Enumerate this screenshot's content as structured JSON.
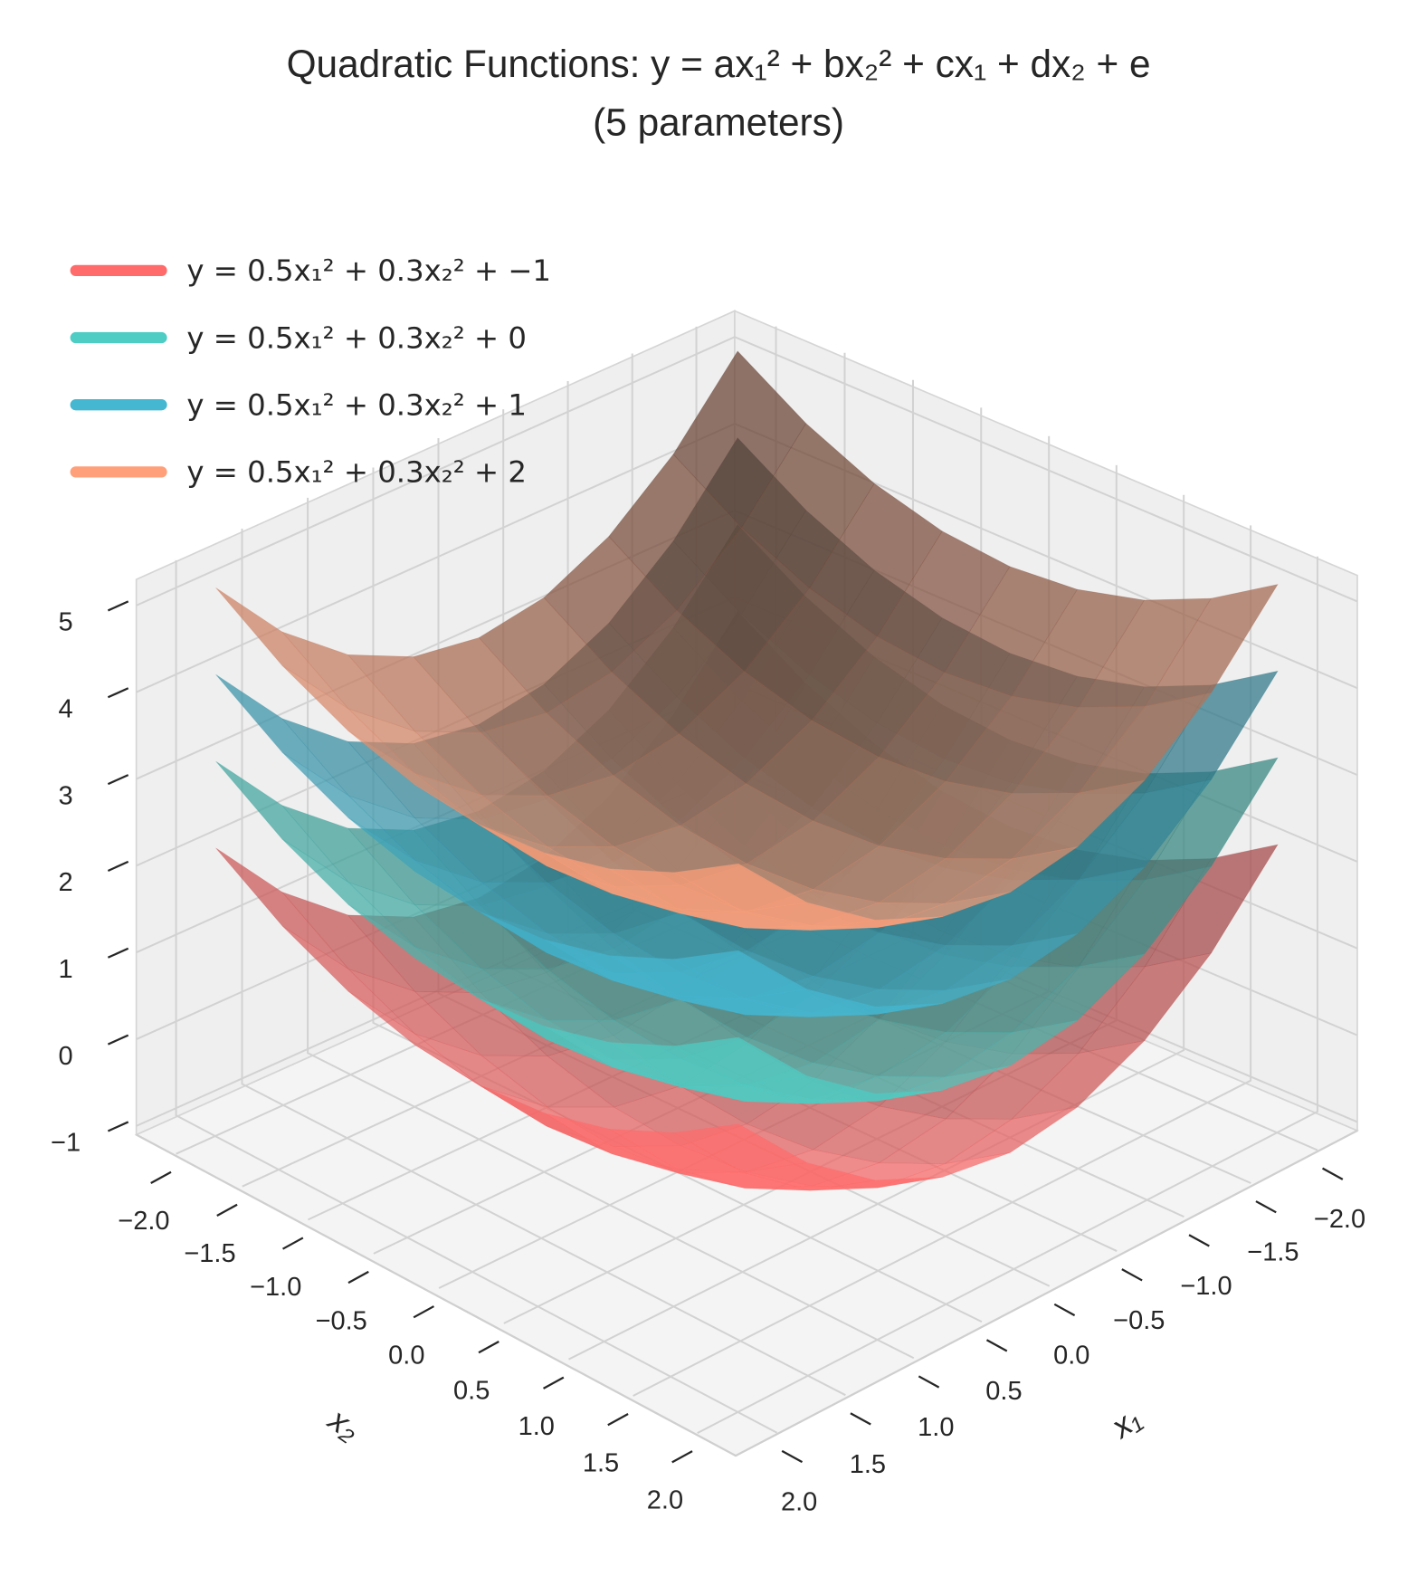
{
  "chart_data": {
    "type": "surface3d",
    "title": [
      "Quadratic Functions: y = ax₁² + bx₂² + cx₁ + dx₂ + e",
      "(5 parameters)"
    ],
    "x1_label": "x₁",
    "x2_label": "x₂",
    "x1": [
      -2,
      -1.5,
      -1,
      -0.5,
      0,
      0.5,
      1,
      1.5,
      2
    ],
    "x2": [
      -2,
      -1.5,
      -1,
      -0.5,
      0,
      0.5,
      1,
      1.5,
      2
    ],
    "x1lim": [
      -2.3,
      2.3
    ],
    "x2lim": [
      -2.3,
      2.3
    ],
    "zlim": [
      -1.1,
      5.3
    ],
    "x1ticks": [
      {
        "value": -2,
        "label": "−2.0"
      },
      {
        "value": -1.5,
        "label": "−1.5"
      },
      {
        "value": -1,
        "label": "−1.0"
      },
      {
        "value": -0.5,
        "label": "−0.5"
      },
      {
        "value": 0,
        "label": "0.0"
      },
      0.5,
      {
        "value": 1,
        "label": "1.0"
      },
      1.5,
      {
        "value": 2,
        "label": "2.0"
      }
    ],
    "x2ticks": [
      {
        "value": -2,
        "label": "−2.0"
      },
      {
        "value": -1.5,
        "label": "−1.5"
      },
      {
        "value": -1,
        "label": "−1.0"
      },
      {
        "value": -0.5,
        "label": "−0.5"
      },
      {
        "value": 0,
        "label": "0.0"
      },
      0.5,
      {
        "value": 1,
        "label": "1.0"
      },
      1.5,
      {
        "value": 2,
        "label": "2.0"
      }
    ],
    "zticks": [
      {
        "value": -1,
        "label": "−1"
      },
      0,
      1,
      2,
      3,
      4,
      5
    ],
    "grid": true,
    "legend": "upper left",
    "series": [
      {
        "name": "y = 0.5x₁² + 0.3x₂² + −1",
        "color": "#ff6b6b",
        "z": [
          [
            2.2,
            1.675,
            1.3,
            1.075,
            1,
            1.075,
            1.3,
            1.675,
            2.2
          ],
          [
            1.325,
            0.8,
            0.425,
            0.2,
            0.125,
            0.2,
            0.425,
            0.8,
            1.325
          ],
          [
            0.7,
            0.175,
            -0.2,
            -0.425,
            -0.5,
            -0.425,
            -0.2,
            0.175,
            0.7
          ],
          [
            0.325,
            -0.2,
            -0.575,
            -0.8,
            -0.875,
            -0.8,
            -0.575,
            -0.2,
            0.325
          ],
          [
            0.2,
            -0.325,
            -0.7,
            -0.925,
            -1,
            -0.925,
            -0.7,
            -0.325,
            0.2
          ],
          [
            0.325,
            -0.2,
            -0.575,
            -0.8,
            -0.875,
            -0.8,
            -0.575,
            -0.2,
            0.325
          ],
          [
            0.7,
            0.175,
            -0.2,
            -0.425,
            -0.5,
            -0.425,
            -0.2,
            0.175,
            0.7
          ],
          [
            1.325,
            0.8,
            0.425,
            0.2,
            0.125,
            0.2,
            0.425,
            0.8,
            1.325
          ],
          [
            2.2,
            1.675,
            1.3,
            1.075,
            1,
            1.075,
            1.3,
            1.675,
            2.2
          ]
        ]
      },
      {
        "name": "y = 0.5x₁² + 0.3x₂² + 0",
        "color": "#4ecdc4",
        "z": [
          [
            3.2,
            2.675,
            2.3,
            2.075,
            2,
            2.075,
            2.3,
            2.675,
            3.2
          ],
          [
            2.325,
            1.8,
            1.425,
            1.2,
            1.125,
            1.2,
            1.425,
            1.8,
            2.325
          ],
          [
            1.7,
            1.175,
            0.8,
            0.575,
            0.5,
            0.575,
            0.8,
            1.175,
            1.7
          ],
          [
            1.325,
            0.8,
            0.425,
            0.2,
            0.125,
            0.2,
            0.425,
            0.8,
            1.325
          ],
          [
            1.2,
            0.675,
            0.3,
            0.075,
            0,
            0.075,
            0.3,
            0.675,
            1.2
          ],
          [
            1.325,
            0.8,
            0.425,
            0.2,
            0.125,
            0.2,
            0.425,
            0.8,
            1.325
          ],
          [
            1.7,
            1.175,
            0.8,
            0.575,
            0.5,
            0.575,
            0.8,
            1.175,
            1.7
          ],
          [
            2.325,
            1.8,
            1.425,
            1.2,
            1.125,
            1.2,
            1.425,
            1.8,
            2.325
          ],
          [
            3.2,
            2.675,
            2.3,
            2.075,
            2,
            2.075,
            2.3,
            2.675,
            3.2
          ]
        ]
      },
      {
        "name": "y = 0.5x₁² + 0.3x₂² + 1",
        "color": "#45b7d1",
        "z": [
          [
            4.2,
            3.675,
            3.3,
            3.075,
            3,
            3.075,
            3.3,
            3.675,
            4.2
          ],
          [
            3.325,
            2.8,
            2.425,
            2.2,
            2.125,
            2.2,
            2.425,
            2.8,
            3.325
          ],
          [
            2.7,
            2.175,
            1.8,
            1.575,
            1.5,
            1.575,
            1.8,
            2.175,
            2.7
          ],
          [
            2.325,
            1.8,
            1.425,
            1.2,
            1.125,
            1.2,
            1.425,
            1.8,
            2.325
          ],
          [
            2.2,
            1.675,
            1.3,
            1.075,
            1,
            1.075,
            1.3,
            1.675,
            2.2
          ],
          [
            2.325,
            1.8,
            1.425,
            1.2,
            1.125,
            1.2,
            1.425,
            1.8,
            2.325
          ],
          [
            2.7,
            2.175,
            1.8,
            1.575,
            1.5,
            1.575,
            1.8,
            2.175,
            2.7
          ],
          [
            3.325,
            2.8,
            2.425,
            2.2,
            2.125,
            2.2,
            2.425,
            2.8,
            3.325
          ],
          [
            4.2,
            3.675,
            3.3,
            3.075,
            3,
            3.075,
            3.3,
            3.675,
            4.2
          ]
        ]
      },
      {
        "name": "y = 0.5x₁² + 0.3x₂² + 2",
        "color": "#ffa07a",
        "z": [
          [
            5.2,
            4.675,
            4.3,
            4.075,
            4,
            4.075,
            4.3,
            4.675,
            5.2
          ],
          [
            4.325,
            3.8,
            3.425,
            3.2,
            3.125,
            3.2,
            3.425,
            3.8,
            4.325
          ],
          [
            3.7,
            3.175,
            2.8,
            2.575,
            2.5,
            2.575,
            2.8,
            3.175,
            3.7
          ],
          [
            3.325,
            2.8,
            2.425,
            2.2,
            2.125,
            2.2,
            2.425,
            2.8,
            3.325
          ],
          [
            3.2,
            2.675,
            2.3,
            2.075,
            2,
            2.075,
            2.3,
            2.675,
            3.2
          ],
          [
            3.325,
            2.8,
            2.425,
            2.2,
            2.125,
            2.2,
            2.425,
            2.8,
            3.325
          ],
          [
            3.7,
            3.175,
            2.8,
            2.575,
            2.5,
            2.575,
            2.8,
            3.175,
            3.7
          ],
          [
            4.325,
            3.8,
            3.425,
            3.2,
            3.125,
            3.2,
            3.425,
            3.8,
            4.325
          ],
          [
            5.2,
            4.675,
            4.3,
            4.075,
            4,
            4.075,
            4.3,
            4.675,
            5.2
          ]
        ]
      }
    ]
  }
}
